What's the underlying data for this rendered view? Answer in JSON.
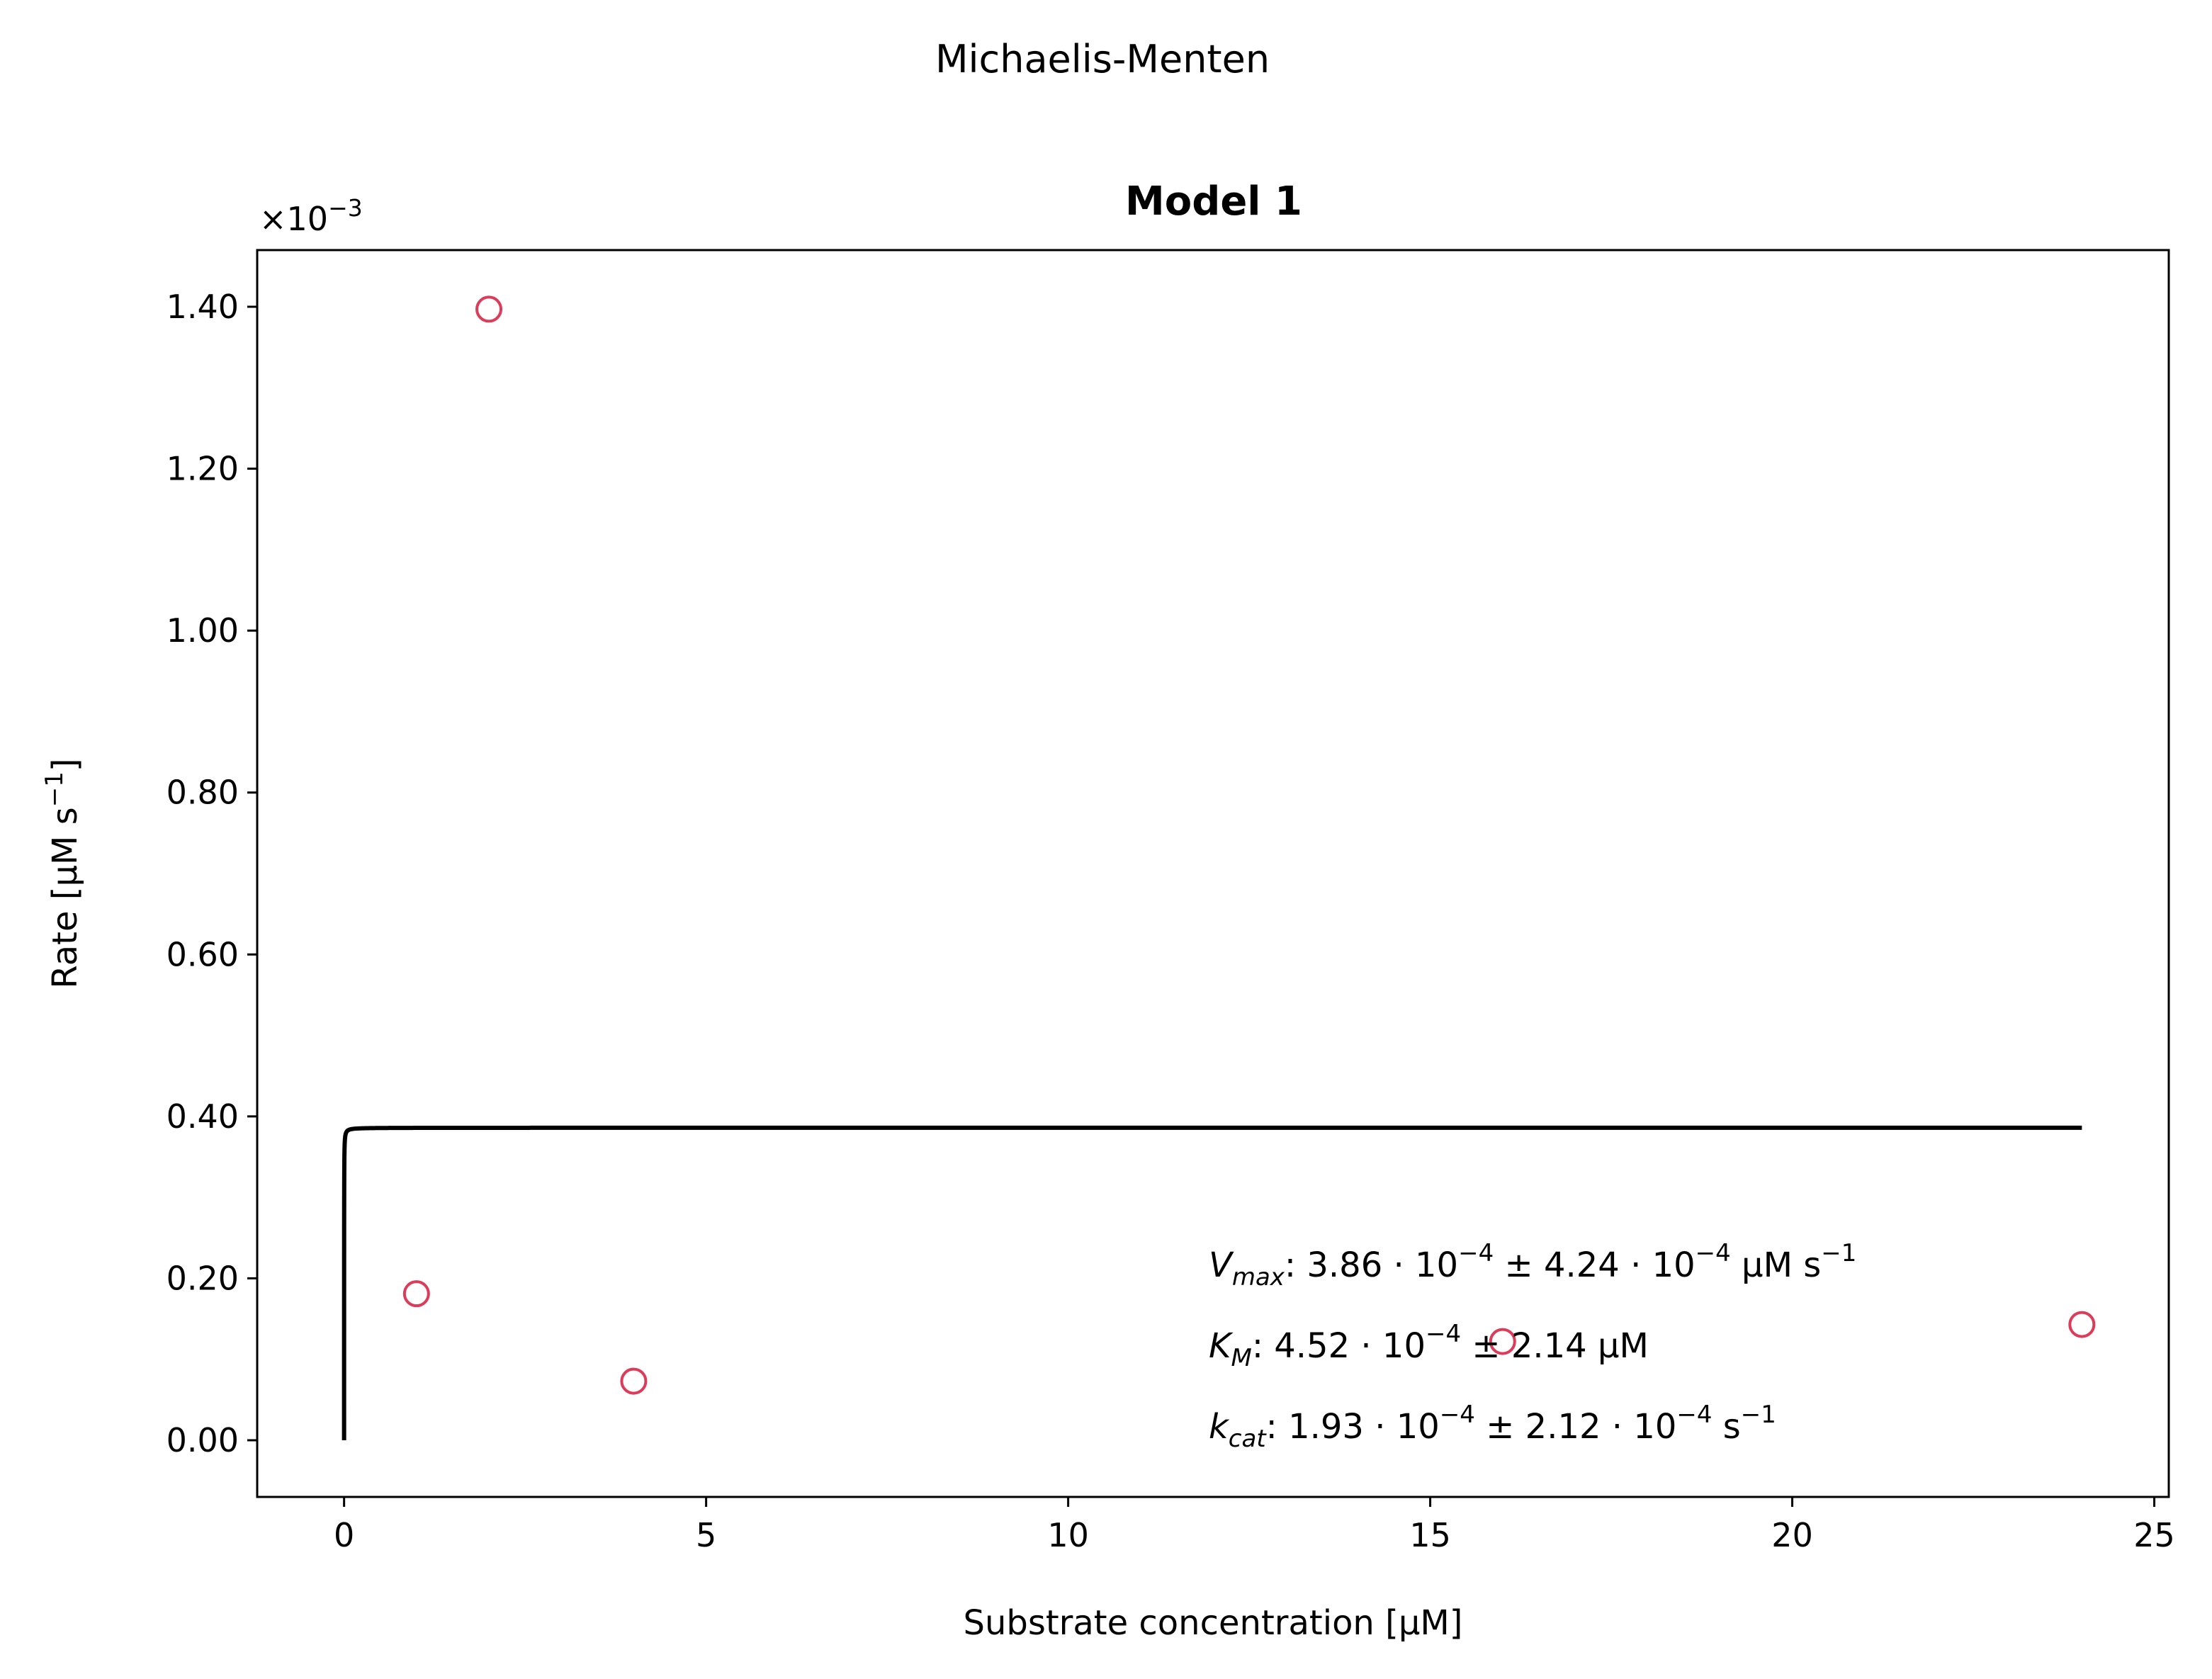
{
  "figure": {
    "suptitle": "Michaelis-Menten"
  },
  "chart_data": {
    "type": "scatter",
    "title": "Model 1",
    "xlabel": "Substrate concentration [μM]",
    "ylabel_prefix": "Rate [μM s",
    "ylabel_sup": "−1",
    "ylabel_suffix": "]",
    "y_offset_text": "×10",
    "y_offset_exp": "−3",
    "xlim": [
      -1.2,
      25.2
    ],
    "ylim": [
      -0.07,
      1.47
    ],
    "y_scale_note": "y values shown in units of 1e-3",
    "grid": false,
    "x_ticks": [
      0,
      5,
      10,
      15,
      20,
      25
    ],
    "x_tick_labels": [
      "0",
      "5",
      "10",
      "15",
      "20",
      "25"
    ],
    "y_ticks": [
      0,
      0.2,
      0.4,
      0.6,
      0.8,
      1.0,
      1.2,
      1.4
    ],
    "y_tick_labels": [
      "0.00",
      "0.20",
      "0.40",
      "0.60",
      "0.80",
      "1.00",
      "1.20",
      "1.40"
    ],
    "series": [
      {
        "kind": "scatter",
        "color": "#dc3c5a",
        "marker": "open-circle",
        "x": [
          1,
          2,
          4,
          16,
          24
        ],
        "y": [
          0.181,
          1.397,
          0.073,
          0.122,
          0.143
        ]
      },
      {
        "kind": "line",
        "color": "#000000",
        "model": "michaelis-menten",
        "vmax": 0.386,
        "km": 0.000452,
        "x_range": [
          0,
          24
        ]
      }
    ],
    "annotations": [
      {
        "sym": "V",
        "sub": "max",
        "pre": ": 3.86 · 10",
        "e1": "−4",
        "mid": " ± 4.24 · 10",
        "e2": "−4",
        "post": " μM s",
        "e3": "−1"
      },
      {
        "sym": "K",
        "sub": "M",
        "pre": ": 4.52 · 10",
        "e1": "−4",
        "mid": " ± 2.14 μM"
      },
      {
        "sym": "k",
        "sub": "cat",
        "pre": ": 1.93 · 10",
        "e1": "−4",
        "mid": " ± 2.12 · 10",
        "e2": "−4",
        "post": " s",
        "e3": "−1"
      }
    ]
  }
}
